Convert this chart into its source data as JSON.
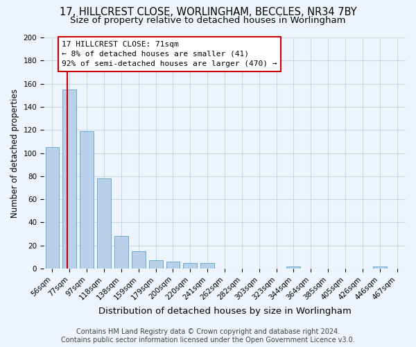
{
  "title_line1": "17, HILLCREST CLOSE, WORLINGHAM, BECCLES, NR34 7BY",
  "title_line2": "Size of property relative to detached houses in Worlingham",
  "xlabel": "Distribution of detached houses by size in Worlingham",
  "ylabel": "Number of detached properties",
  "categories": [
    "56sqm",
    "77sqm",
    "97sqm",
    "118sqm",
    "138sqm",
    "159sqm",
    "179sqm",
    "200sqm",
    "220sqm",
    "241sqm",
    "262sqm",
    "282sqm",
    "303sqm",
    "323sqm",
    "344sqm",
    "364sqm",
    "385sqm",
    "405sqm",
    "426sqm",
    "446sqm",
    "467sqm"
  ],
  "values": [
    105,
    155,
    119,
    78,
    28,
    15,
    7,
    6,
    5,
    5,
    0,
    0,
    0,
    0,
    2,
    0,
    0,
    0,
    0,
    2,
    0
  ],
  "bar_color": "#b8d0e8",
  "bar_edge_color": "#6aaad4",
  "grid_color": "#c8d8e8",
  "background_color": "#eef4fb",
  "vline_color": "#cc0000",
  "annotation_text": "17 HILLCREST CLOSE: 71sqm\n← 8% of detached houses are smaller (41)\n92% of semi-detached houses are larger (470) →",
  "annotation_box_color": "#ffffff",
  "annotation_box_edge_color": "#cc0000",
  "ylim": [
    0,
    200
  ],
  "yticks": [
    0,
    20,
    40,
    60,
    80,
    100,
    120,
    140,
    160,
    180,
    200
  ],
  "footer_line1": "Contains HM Land Registry data © Crown copyright and database right 2024.",
  "footer_line2": "Contains public sector information licensed under the Open Government Licence v3.0.",
  "title_fontsize": 10.5,
  "subtitle_fontsize": 9.5,
  "xlabel_fontsize": 9.5,
  "ylabel_fontsize": 8.5,
  "tick_fontsize": 7.5,
  "annotation_fontsize": 8,
  "footer_fontsize": 7
}
